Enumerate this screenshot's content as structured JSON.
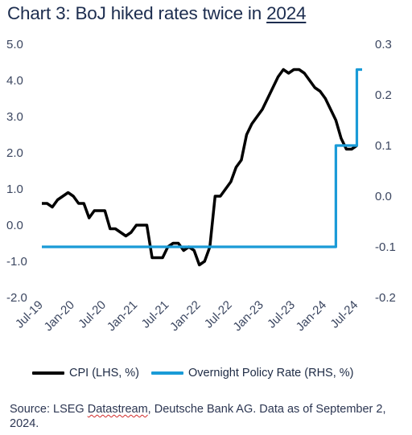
{
  "title_prefix": "Chart 3: BoJ hiked rates twice in ",
  "title_year": "2024",
  "legend": [
    {
      "label": "CPI (LHS, %)",
      "color": "#000000"
    },
    {
      "label": "Overnight Policy Rate (RHS, %)",
      "color": "#1a9bd7"
    }
  ],
  "source": {
    "part1": "Source: LSEG ",
    "part2": "Datastream",
    "part3": ", Deutsche Bank AG. Data as of September 2, 2024."
  },
  "chart_data": {
    "type": "line",
    "title": "Chart 3: BoJ hiked rates twice in 2024",
    "x_ticks": [
      "Jul-19",
      "Jan-20",
      "Jul-20",
      "Jan-21",
      "Jul-21",
      "Jan-22",
      "Jul-22",
      "Jan-23",
      "Jul-23",
      "Jan-24",
      "Jul-24"
    ],
    "y_left": {
      "label": "",
      "min": -2.0,
      "max": 5.0,
      "ticks": [
        "-2.0",
        "-1.0",
        "0.0",
        "1.0",
        "2.0",
        "3.0",
        "4.0",
        "5.0"
      ]
    },
    "y_right": {
      "label": "",
      "min": -0.2,
      "max": 0.3,
      "ticks": [
        "-0.2",
        "-0.1",
        "0.0",
        "0.1",
        "0.2",
        "0.3"
      ]
    },
    "grid": false,
    "legend_position": "bottom",
    "series": [
      {
        "name": "CPI (LHS, %)",
        "axis": "left",
        "color": "#000000",
        "x": [
          "2019-07",
          "2019-08",
          "2019-09",
          "2019-10",
          "2019-11",
          "2019-12",
          "2020-01",
          "2020-02",
          "2020-03",
          "2020-04",
          "2020-05",
          "2020-06",
          "2020-07",
          "2020-08",
          "2020-09",
          "2020-10",
          "2020-11",
          "2020-12",
          "2021-01",
          "2021-02",
          "2021-03",
          "2021-04",
          "2021-05",
          "2021-06",
          "2021-07",
          "2021-08",
          "2021-09",
          "2021-10",
          "2021-11",
          "2021-12",
          "2022-01",
          "2022-02",
          "2022-03",
          "2022-04",
          "2022-05",
          "2022-06",
          "2022-07",
          "2022-08",
          "2022-09",
          "2022-10",
          "2022-11",
          "2022-12",
          "2023-01",
          "2023-02",
          "2023-03",
          "2023-04",
          "2023-05",
          "2023-06",
          "2023-07",
          "2023-08",
          "2023-09",
          "2023-10",
          "2023-11",
          "2023-12",
          "2024-01",
          "2024-02",
          "2024-03",
          "2024-04",
          "2024-05",
          "2024-06",
          "2024-07"
        ],
        "values": [
          0.6,
          0.6,
          0.5,
          0.7,
          0.8,
          0.9,
          0.8,
          0.6,
          0.6,
          0.2,
          0.4,
          0.4,
          0.4,
          -0.1,
          -0.1,
          -0.2,
          -0.3,
          -0.2,
          0.0,
          0.0,
          0.0,
          -0.9,
          -0.9,
          -0.9,
          -0.6,
          -0.5,
          -0.5,
          -0.7,
          -0.6,
          -0.7,
          -1.1,
          -1.0,
          -0.6,
          0.8,
          0.8,
          1.0,
          1.2,
          1.6,
          1.8,
          2.5,
          2.8,
          3.0,
          3.2,
          3.5,
          3.8,
          4.1,
          4.3,
          4.2,
          4.3,
          4.3,
          4.2,
          4.0,
          3.8,
          3.7,
          3.5,
          3.2,
          2.9,
          2.4,
          2.1,
          2.1,
          2.2
        ]
      },
      {
        "name": "Overnight Policy Rate (RHS, %)",
        "axis": "right",
        "color": "#1a9bd7",
        "x": [
          "2019-07",
          "2024-02",
          "2024-03",
          "2024-04",
          "2024-05",
          "2024-06",
          "2024-07",
          "2024-08"
        ],
        "values": [
          -0.1,
          -0.1,
          0.1,
          0.1,
          0.1,
          0.1,
          0.25,
          0.25
        ],
        "step": true
      }
    ]
  }
}
